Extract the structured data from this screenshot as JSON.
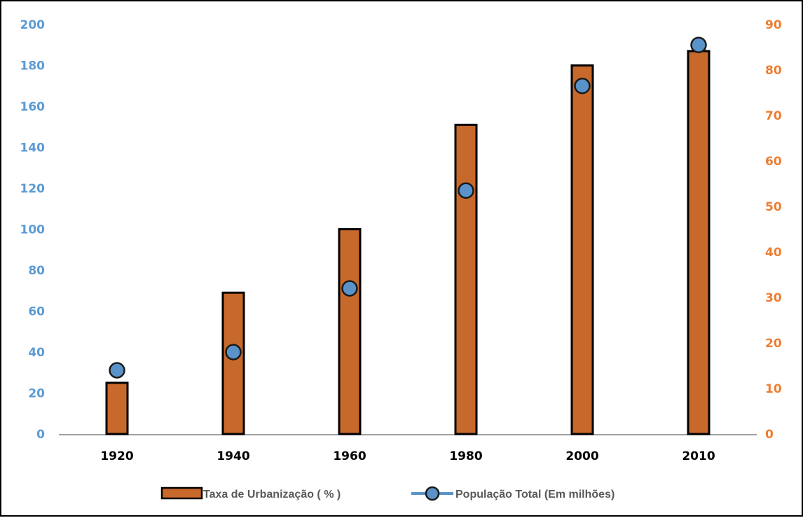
{
  "chart_data": {
    "type": "bar",
    "categories": [
      "1920",
      "1940",
      "1960",
      "1980",
      "2000",
      "2010"
    ],
    "series": [
      {
        "name": "Taxa de Urbanização ( % )",
        "type": "bar",
        "axis": "left",
        "values": [
          25,
          69,
          100,
          151,
          180,
          187
        ]
      },
      {
        "name": "População Total (Em milhões)",
        "type": "line-markers",
        "axis": "right",
        "values": [
          14,
          18,
          32,
          53.5,
          76.5,
          85.5
        ]
      }
    ],
    "y_left": {
      "ticks": [
        "0",
        "20",
        "40",
        "60",
        "80",
        "100",
        "120",
        "140",
        "160",
        "180",
        "200"
      ],
      "range": [
        0,
        200
      ]
    },
    "y_right": {
      "ticks": [
        "0",
        "10",
        "20",
        "30",
        "40",
        "50",
        "60",
        "70",
        "80",
        "90"
      ],
      "range": [
        0,
        90
      ]
    },
    "legend": {
      "placement": "bottom",
      "items": [
        "Taxa de Urbanização ( % )",
        "População Total (Em milhões)"
      ]
    },
    "grid": false,
    "colors": {
      "bar_fill": "#c8692c",
      "bar_stroke": "#000000",
      "marker_fill": "#5a93c9",
      "marker_stroke": "#1a1a1a",
      "left_axis_text": "#5b9bd5",
      "right_axis_text": "#ed7d31",
      "x_axis_text": "#000000",
      "axis_line": "#808080"
    }
  }
}
